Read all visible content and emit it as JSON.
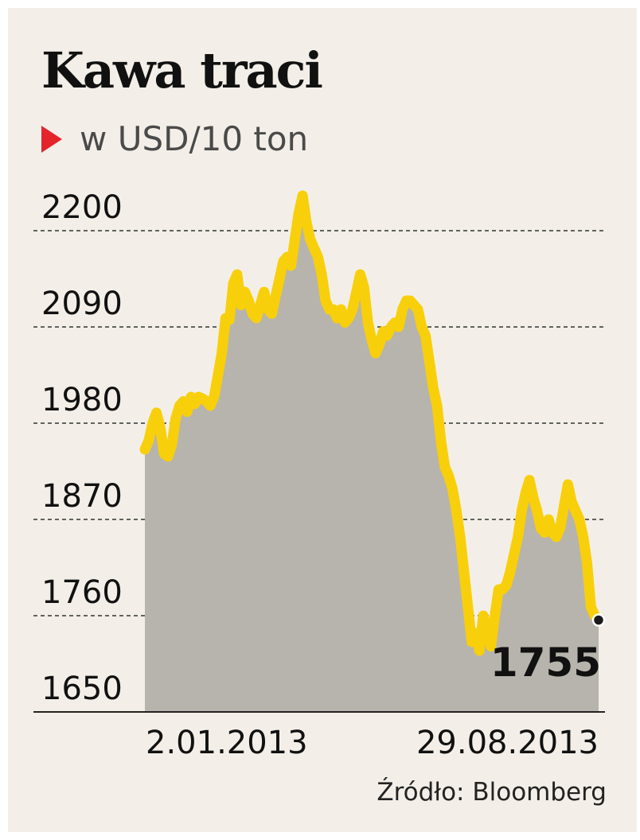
{
  "chart_data": {
    "type": "area",
    "title": "Kawa traci",
    "subtitle": "w USD/10 ton",
    "source": "Źródło: Bloomberg",
    "ylim": [
      1650,
      2200
    ],
    "yticks": [
      "2200",
      "2090",
      "1980",
      "1870",
      "1760",
      "1650"
    ],
    "ytick_values": [
      2200,
      2090,
      1980,
      1870,
      1760,
      1650
    ],
    "xtick_labels": [
      "2.01.2013",
      "29.08.2013"
    ],
    "last_value_label": "1755",
    "grid": "dashed horizontal",
    "series": [
      {
        "values": [
          1950,
          1960,
          1980,
          1992,
          1975,
          1945,
          1942,
          1955,
          1985,
          2000,
          2005,
          1993,
          2010,
          2002,
          2010,
          2008,
          2005,
          2000,
          2010,
          2035,
          2060,
          2100,
          2098,
          2140,
          2150,
          2115,
          2130,
          2120,
          2105,
          2100,
          2115,
          2130,
          2110,
          2105,
          2125,
          2145,
          2165,
          2170,
          2160,
          2190,
          2220,
          2240,
          2210,
          2190,
          2180,
          2170,
          2150,
          2120,
          2110,
          2110,
          2100,
          2110,
          2095,
          2100,
          2110,
          2130,
          2150,
          2135,
          2095,
          2075,
          2060,
          2070,
          2085,
          2080,
          2090,
          2095,
          2090,
          2110,
          2120,
          2120,
          2115,
          2110,
          2090,
          2080,
          2050,
          2020,
          2000,
          1960,
          1930,
          1920,
          1905,
          1880,
          1850,
          1810,
          1770,
          1730,
          1740,
          1720,
          1760,
          1740,
          1725,
          1760,
          1790,
          1790,
          1795,
          1810,
          1830,
          1850,
          1880,
          1900,
          1915,
          1895,
          1880,
          1860,
          1855,
          1870,
          1855,
          1850,
          1860,
          1885,
          1910,
          1890,
          1880,
          1870,
          1850,
          1820,
          1770,
          1760,
          1755
        ]
      }
    ],
    "colors": {
      "line": "#f8cf0b",
      "fill": "#b7b4ad",
      "grid": "#333333",
      "marker": "#1a1a1a"
    }
  }
}
